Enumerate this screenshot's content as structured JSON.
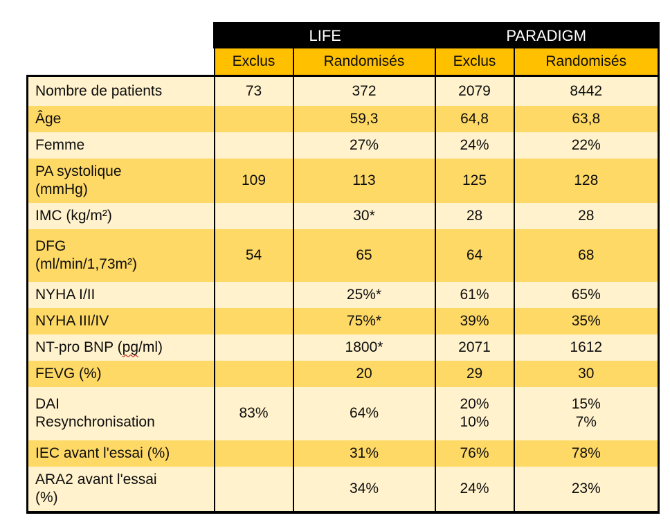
{
  "table": {
    "studies": [
      "LIFE",
      "PARADIGM"
    ],
    "col_headers": [
      "Exclus",
      "Randomisés",
      "Exclus",
      "Randomisés"
    ],
    "rows": [
      {
        "label": "Nombre de patients",
        "values": [
          "73",
          "372",
          "2079",
          "8442"
        ]
      },
      {
        "label": "Âge",
        "values": [
          "",
          "59,3",
          "64,8",
          "63,8"
        ]
      },
      {
        "label": "Femme",
        "values": [
          "",
          "27%",
          "24%",
          "22%"
        ]
      },
      {
        "label": [
          "PA systolique",
          "(mmHg)"
        ],
        "values": [
          "109",
          "113",
          "125",
          "128"
        ]
      },
      {
        "label": "IMC (kg/m²)",
        "values": [
          "",
          "30*",
          "28",
          "28"
        ]
      },
      {
        "label": [
          "DFG",
          "(ml/min/1,73m²)"
        ],
        "values": [
          "54",
          "65",
          "64",
          "68"
        ]
      },
      {
        "label": "NYHA I/II",
        "values": [
          "",
          "25%*",
          "61%",
          "65%"
        ]
      },
      {
        "label": "NYHA III/IV",
        "values": [
          "",
          "75%*",
          "39%",
          "35%"
        ]
      },
      {
        "label": "NT-pro BNP (pg/ml)",
        "squiggle": "pg",
        "values": [
          "",
          "1800*",
          "2071",
          "1612"
        ]
      },
      {
        "label": "FEVG (%)",
        "values": [
          "",
          "20",
          "29",
          "30"
        ]
      },
      {
        "label": [
          "DAI",
          "Resynchronisation"
        ],
        "values": [
          "83%",
          "64%",
          [
            "20%",
            "10%"
          ],
          [
            "15%",
            "7%"
          ]
        ]
      },
      {
        "label": "IEC avant l'essai (%)",
        "values": [
          "",
          "31%",
          "76%",
          "78%"
        ]
      },
      {
        "label": [
          "ARA2 avant l'essai",
          "(%)"
        ],
        "values": [
          "",
          "34%",
          "24%",
          "23%"
        ]
      }
    ],
    "colors": {
      "header_bg": "#000000",
      "header_text": "#ffffff",
      "subheader_bg": "#ffc000",
      "row_gold": "#ffd966",
      "row_cream": "#fff2cc",
      "squiggle": "#c00000"
    }
  }
}
